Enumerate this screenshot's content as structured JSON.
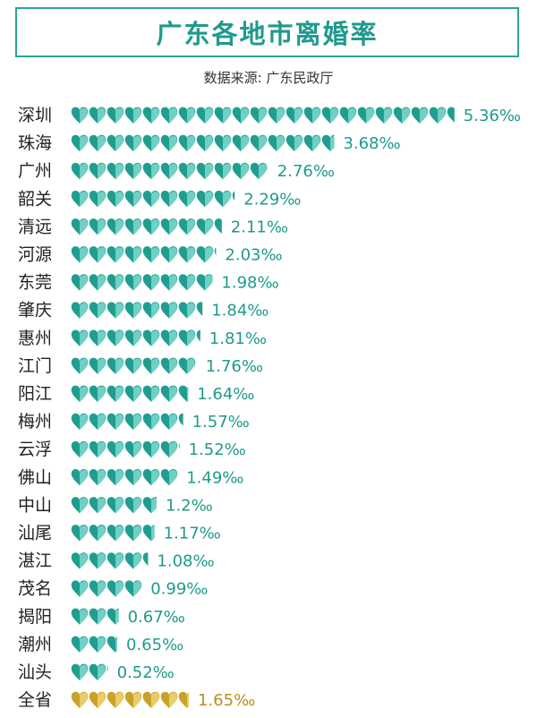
{
  "page": {
    "title": "广东各地市离婚率",
    "source": "数据来源: 广东民政厅"
  },
  "colors": {
    "accent": "#2aa497",
    "heart_dark": "#1f9e90",
    "heart_light": "#6fd0c3",
    "total_dark": "#c9a229",
    "total_light": "#e9cd6c",
    "label": "#222222",
    "value": "#1f9a8c",
    "value_total": "#b8901c"
  },
  "chart_data": {
    "type": "bar",
    "unit": "‰",
    "categories": [
      "深圳",
      "珠海",
      "广州",
      "韶关",
      "清远",
      "河源",
      "东莞",
      "肇庆",
      "惠州",
      "江门",
      "阳江",
      "梅州",
      "云浮",
      "佛山",
      "中山",
      "汕尾",
      "湛江",
      "茂名",
      "揭阳",
      "潮州",
      "汕头",
      "全省"
    ],
    "values": [
      5.36,
      3.68,
      2.76,
      2.29,
      2.11,
      2.03,
      1.98,
      1.84,
      1.81,
      1.76,
      1.64,
      1.57,
      1.52,
      1.49,
      1.2,
      1.17,
      1.08,
      0.99,
      0.67,
      0.65,
      0.52,
      1.65
    ],
    "value_labels": [
      "5.36‰",
      "3.68‰",
      "2.76‰",
      "2.29‰",
      "2.11‰",
      "2.03‰",
      "1.98‰",
      "1.84‰",
      "1.81‰",
      "1.76‰",
      "1.64‰",
      "1.57‰",
      "1.52‰",
      "1.49‰",
      "1.2‰",
      "1.17‰",
      "1.08‰",
      "0.99‰",
      "0.67‰",
      "0.65‰",
      "0.52‰",
      "1.65‰"
    ],
    "highlight_category": "全省"
  }
}
